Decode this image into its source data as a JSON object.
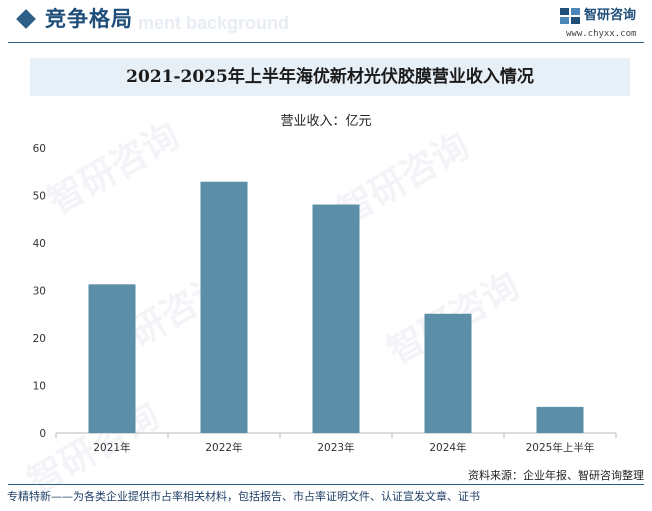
{
  "header": {
    "title": "竞争格局",
    "ghost_text": "ment background"
  },
  "logo": {
    "name": "智研咨询",
    "url": "www.chyxx.com"
  },
  "watermark": {
    "text": "智研咨询"
  },
  "chart_data": {
    "type": "bar",
    "title": "2021-2025年上半年海优新材光伏胶膜营业收入情况",
    "unit_label": "营业收入：亿元",
    "categories": [
      "2021年",
      "2022年",
      "2023年",
      "2024年",
      "2025年上半年"
    ],
    "values": [
      31.3,
      52.9,
      48.1,
      25.1,
      5.5
    ],
    "ylim": [
      0,
      60
    ],
    "yticks": [
      0,
      10,
      20,
      30,
      40,
      50,
      60
    ],
    "xlabel": "",
    "ylabel": "",
    "grid": false,
    "bar_color": "#5b8fa8"
  },
  "footer": {
    "source": "资料来源：企业年报、智研咨询整理",
    "slogan": "专精特新——为各类企业提供市占率相关材料，包括报告、市占率证明文件、认证宣发文章、证书"
  }
}
